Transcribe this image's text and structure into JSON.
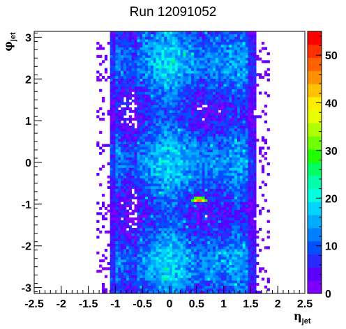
{
  "chart_data": {
    "type": "heatmap",
    "title": "Run 12091052",
    "xlabel": {
      "symbol": "η",
      "subscript": "jet"
    },
    "ylabel": {
      "symbol": "φ",
      "subscript": "jet"
    },
    "xlim": [
      -2.5,
      2.5
    ],
    "ylim": [
      -3.14,
      3.14
    ],
    "x_ticks": [
      "-2.5",
      "-2",
      "-1.5",
      "-1",
      "-0.5",
      "0",
      "0.5",
      "1",
      "1.5",
      "2",
      "2.5"
    ],
    "y_ticks": [
      "-3",
      "-2",
      "-1",
      "0",
      "1",
      "2",
      "3"
    ],
    "z_range": [
      0,
      55
    ],
    "colorbar_ticks": [
      "0",
      "10",
      "20",
      "30",
      "40",
      "50"
    ],
    "colorbar_colors": [
      "#7f00ff",
      "#5a00ff",
      "#2a2aff",
      "#0050ff",
      "#0080ff",
      "#00aaff",
      "#00d4ff",
      "#00ffe0",
      "#00ffaa",
      "#00ff60",
      "#20ff00",
      "#70ff00",
      "#b0ff00",
      "#e8ff00",
      "#ffee00",
      "#ffc000",
      "#ff9000",
      "#ff6000",
      "#ff3000",
      "#ff0000"
    ],
    "x_bins": 100,
    "y_bins": 100,
    "description": "2D occupancy histogram: dense band for eta between about -1.1 and 1.65, sparse edges, hot spot near eta 0.55, phi -0.9",
    "grid": false,
    "legend": "colorbar-right"
  }
}
